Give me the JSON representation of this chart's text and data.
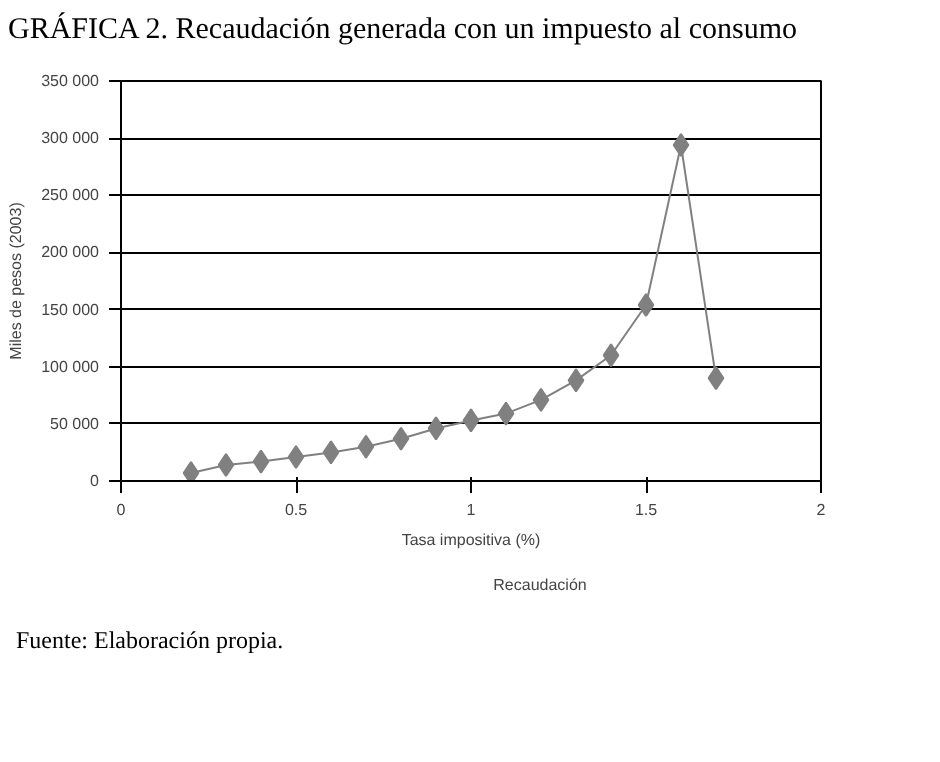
{
  "chart_data": {
    "type": "line",
    "title": "GRÁFICA 2. Recaudación generada con un impuesto al consumo",
    "xlabel": "Tasa impositiva (%)",
    "ylabel": "Miles de pesos (2003)",
    "x": [
      0.2,
      0.3,
      0.4,
      0.5,
      0.6,
      0.7,
      0.8,
      0.9,
      1.0,
      1.1,
      1.2,
      1.3,
      1.4,
      1.5,
      1.6,
      1.7
    ],
    "series": [
      {
        "name": "Recaudación",
        "color": "#808080",
        "values": [
          7000,
          14000,
          17000,
          21000,
          25000,
          30000,
          37000,
          46000,
          53000,
          59000,
          71000,
          88000,
          110000,
          154000,
          294000,
          90000
        ]
      }
    ],
    "xlim": [
      0,
      2
    ],
    "xticks": [
      0,
      {
        "value": 0.5,
        "label": "0.5"
      },
      1,
      {
        "value": 1.5,
        "label": "1.5"
      },
      2
    ],
    "ylim": [
      0,
      350000
    ],
    "yticks": [
      0,
      {
        "value": 50000,
        "label": "50 000"
      },
      {
        "value": 100000,
        "label": "100 000"
      },
      {
        "value": 150000,
        "label": "150 000"
      },
      {
        "value": 200000,
        "label": "200 000"
      },
      {
        "value": 250000,
        "label": "250 000"
      },
      {
        "value": 300000,
        "label": "300 000"
      },
      {
        "value": 350000,
        "label": "350 000"
      }
    ],
    "grid": "y",
    "legend": "bottom",
    "marker": "diamond",
    "line_style": "solid",
    "annotations": [
      "Fuente: Elaboración propia."
    ]
  }
}
